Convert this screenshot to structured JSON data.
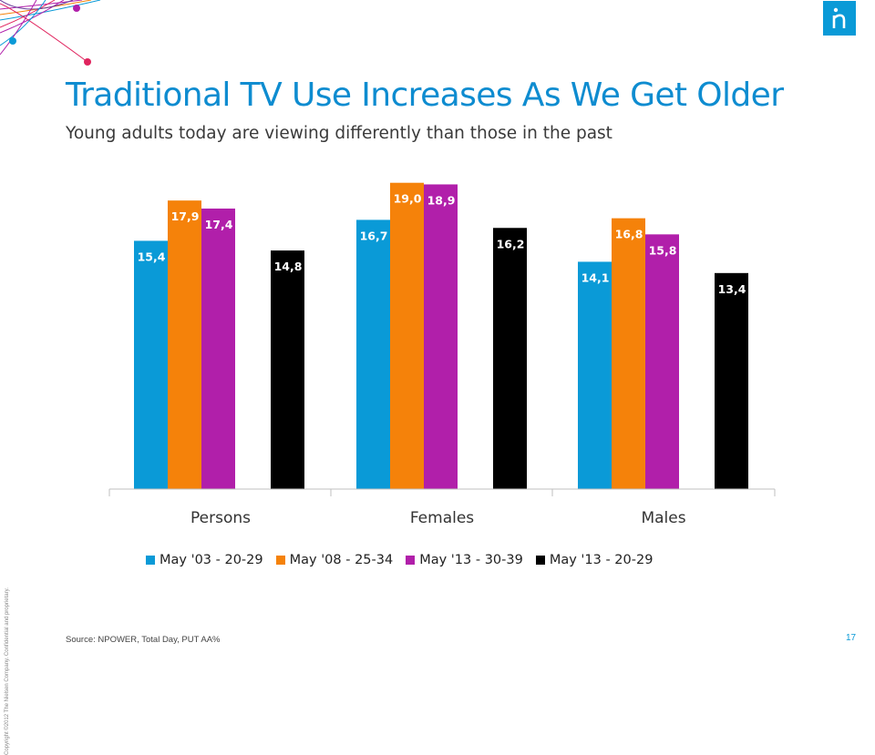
{
  "slide": {
    "title": "Traditional TV Use Increases As We Get Older",
    "subtitle": "Young adults today are viewing differently than those in the past",
    "source": "Source:  NPOWER, Total Day, PUT AA%",
    "page_number": "17",
    "copyright": "Copyright ©2012 The Nielsen Company. Confidential and proprietary.",
    "logo_text": "n",
    "colors": {
      "title": "#0e8cd0",
      "logo": "#0a9ad7"
    }
  },
  "chart_data": {
    "type": "bar",
    "title": "",
    "xlabel": "",
    "ylabel": "",
    "categories": [
      "Persons",
      "Females",
      "Males"
    ],
    "ylim": [
      0,
      20
    ],
    "grid": false,
    "legend_position": "bottom",
    "series": [
      {
        "name": "May '03 - 20-29",
        "color": "#0a9ad7",
        "values": [
          15.4,
          16.7,
          14.1
        ],
        "labels": [
          "15,4",
          "16,7",
          "14,1"
        ]
      },
      {
        "name": "May '08 - 25-34",
        "color": "#f5820a",
        "values": [
          17.9,
          19.0,
          16.8
        ],
        "labels": [
          "17,9",
          "19,0",
          "16,8"
        ]
      },
      {
        "name": "May '13 - 30-39",
        "color": "#b11faa",
        "values": [
          17.4,
          18.9,
          15.8
        ],
        "labels": [
          "17,4",
          "18,9",
          "15,8"
        ]
      },
      {
        "name": "May '13 - 20-29",
        "color": "#000000",
        "values": [
          14.8,
          16.2,
          13.4
        ],
        "labels": [
          "14,8",
          "16,2",
          "13,4"
        ]
      }
    ]
  }
}
